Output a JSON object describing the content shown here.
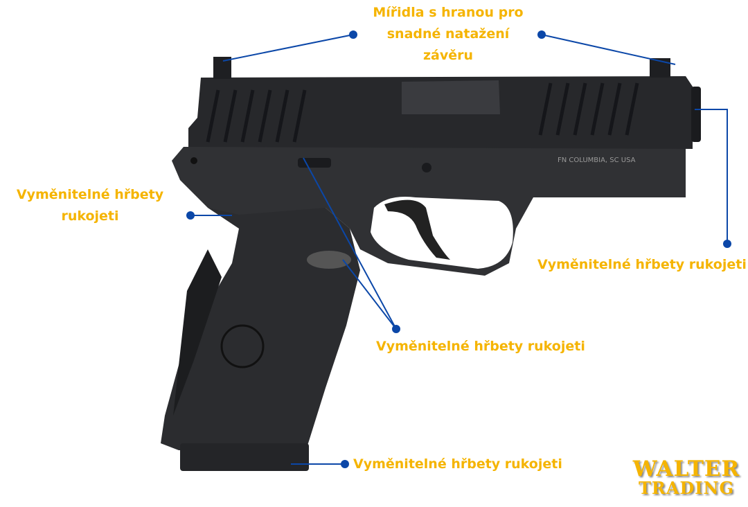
{
  "labels": {
    "sights": "Mířidla s hranou pro snadné natažení závěru",
    "sights_lines": [
      "Mířidla s hranou pro",
      "snadné natažení",
      "závěru"
    ],
    "backstraps_left_lines": [
      "Vyměnitelné hřbety",
      "rukojeti"
    ],
    "backstraps_right": "Vyměnitelné hřbety rukojeti",
    "backstraps_middle": "Vyměnitelné hřbety rukojeti",
    "backstraps_bottom": "Vyměnitelné hřbety rukojeti"
  },
  "slide_marking": "FN COLUMBIA, SC USA",
  "logo": {
    "line1": "WALTER",
    "line2": "TRADING"
  },
  "colors": {
    "label": "#f5b400",
    "callout": "#0b47a8",
    "pistol": "#2a2b2e"
  }
}
